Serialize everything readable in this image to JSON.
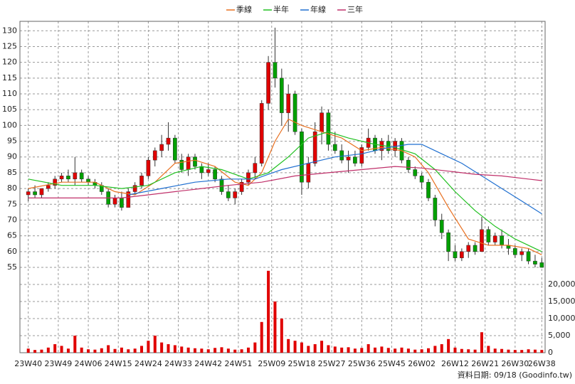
{
  "chart_data": {
    "type": "candlestick",
    "xlim": [
      -2.5,
      155
    ],
    "xticks": [
      {
        "value": 0,
        "label": "23W40"
      },
      {
        "value": 9,
        "label": "23W49"
      },
      {
        "value": 18,
        "label": "24W06"
      },
      {
        "value": 27,
        "label": "24W15"
      },
      {
        "value": 36,
        "label": "24W24"
      },
      {
        "value": 45,
        "label": "24W33"
      },
      {
        "value": 54,
        "label": "24W42"
      },
      {
        "value": 63,
        "label": "24W51"
      },
      {
        "value": 73,
        "label": "25W09"
      },
      {
        "value": 82,
        "label": "25W18"
      },
      {
        "value": 91,
        "label": "25W27"
      },
      {
        "value": 100,
        "label": "25W36"
      },
      {
        "value": 109,
        "label": "25W45"
      },
      {
        "value": 118,
        "label": "26W02"
      },
      {
        "value": 128,
        "label": "26W12"
      },
      {
        "value": 137,
        "label": "26W21"
      },
      {
        "value": 146,
        "label": "26W30"
      },
      {
        "value": 154,
        "label": "26W38"
      }
    ],
    "ylim": [
      55,
      133
    ],
    "yticks": [
      55,
      60,
      65,
      70,
      75,
      80,
      85,
      90,
      95,
      100,
      105,
      110,
      115,
      120,
      125,
      130
    ],
    "grid": true,
    "up_color": "#e00000",
    "down_color": "#00a000",
    "candles": {
      "x": [
        0,
        2,
        4,
        6,
        8,
        10,
        12,
        14,
        16,
        18,
        20,
        22,
        24,
        26,
        28,
        30,
        32,
        34,
        36,
        38,
        40,
        42,
        44,
        46,
        48,
        50,
        52,
        54,
        56,
        58,
        60,
        62,
        64,
        66,
        68,
        70,
        72,
        74,
        76,
        78,
        80,
        82,
        84,
        86,
        88,
        90,
        92,
        94,
        96,
        98,
        100,
        102,
        104,
        106,
        108,
        110,
        112,
        114,
        116,
        118,
        120,
        122,
        124,
        126,
        128,
        130,
        132,
        134,
        136,
        138,
        140,
        142,
        144,
        146,
        148,
        150,
        152,
        154
      ],
      "open": [
        78,
        79,
        78,
        80,
        81,
        83,
        84,
        83,
        85,
        83,
        82,
        81,
        79,
        75,
        77,
        74,
        79,
        81,
        84,
        89,
        92,
        94,
        96,
        89,
        86,
        90,
        87,
        85,
        86,
        83,
        79,
        77,
        79,
        82,
        85,
        88,
        107,
        120,
        115,
        104,
        110,
        98,
        82,
        88,
        98,
        104,
        94,
        92,
        89,
        90,
        88,
        93,
        96,
        92,
        95,
        92,
        95,
        89,
        86,
        84,
        82,
        77,
        70,
        66,
        60,
        58,
        60,
        62,
        60,
        67,
        63,
        65,
        62,
        61,
        59,
        60,
        57,
        56.5
      ],
      "high": [
        80,
        81,
        80,
        82,
        84,
        85,
        86,
        90,
        86,
        84,
        83,
        82,
        80,
        78,
        79,
        80,
        82,
        85,
        90,
        93,
        97,
        101,
        97,
        91,
        91,
        91,
        88,
        88,
        87,
        84,
        81,
        80,
        83,
        86,
        90,
        108,
        122,
        131,
        118,
        113,
        111,
        99,
        90,
        101,
        106,
        105,
        98,
        94,
        92,
        92,
        94,
        99,
        97,
        96,
        97,
        96,
        96,
        90,
        87,
        85,
        83,
        78,
        72,
        67,
        62,
        61,
        63,
        63,
        71,
        68,
        66,
        67,
        64,
        62,
        61,
        61,
        59,
        58
      ],
      "low": [
        76,
        77,
        77,
        79,
        80,
        82,
        82,
        81,
        82,
        81,
        80,
        78,
        74,
        74,
        73,
        74,
        78,
        80,
        83,
        87,
        90,
        92,
        88,
        85,
        84,
        86,
        83,
        84,
        82,
        78,
        76,
        75,
        78,
        81,
        83,
        87,
        105,
        112,
        100,
        98,
        97,
        78,
        80,
        87,
        94,
        92,
        91,
        88,
        85,
        87,
        87,
        92,
        91,
        89,
        91,
        90,
        88,
        85,
        83,
        80,
        76,
        68,
        64,
        57,
        57,
        57,
        58,
        59,
        60,
        62,
        62,
        61,
        59,
        58,
        57,
        56,
        55,
        55
      ],
      "close": [
        79,
        78,
        80,
        81,
        83,
        84,
        83,
        85,
        83,
        82,
        81,
        79,
        75,
        77,
        74,
        79,
        81,
        84,
        89,
        92,
        94,
        96,
        89,
        86,
        90,
        87,
        85,
        86,
        83,
        79,
        77,
        79,
        82,
        85,
        88,
        107,
        120,
        115,
        104,
        110,
        98,
        82,
        88,
        98,
        104,
        94,
        92,
        89,
        90,
        88,
        93,
        96,
        92,
        95,
        92,
        95,
        89,
        86,
        84,
        82,
        77,
        70,
        66,
        60,
        58,
        60,
        62,
        60,
        67,
        63,
        65,
        62,
        61,
        59,
        60,
        57,
        56,
        55
      ]
    },
    "volume": {
      "color": "#e00000",
      "ylim": [
        0,
        25000
      ],
      "yticks": [
        0,
        {
          "value": 5000,
          "label": "5,000"
        },
        {
          "value": 10000,
          "label": "10,000"
        },
        {
          "value": 15000,
          "label": "15,000"
        },
        {
          "value": 20000,
          "label": "20,000"
        }
      ],
      "values": [
        1200,
        800,
        900,
        1500,
        2500,
        2000,
        1200,
        5000,
        1500,
        1000,
        900,
        1300,
        2200,
        1100,
        1500,
        1000,
        1200,
        2000,
        3500,
        5000,
        3000,
        2500,
        2200,
        1800,
        1500,
        1300,
        1200,
        1000,
        1400,
        1600,
        1200,
        900,
        1000,
        1500,
        3000,
        9000,
        24000,
        15000,
        10000,
        4000,
        3500,
        3000,
        2000,
        2500,
        3500,
        2200,
        1800,
        1500,
        1600,
        1200,
        1400,
        2500,
        1500,
        1800,
        1400,
        1200,
        1500,
        1200,
        900,
        1000,
        1300,
        2000,
        2500,
        4000,
        1500,
        1100,
        1000,
        900,
        6000,
        2000,
        1200,
        1100,
        900,
        800,
        800,
        1000,
        900,
        800
      ]
    },
    "series": [
      {
        "name": "季線",
        "color": "#e87020",
        "x": [
          0,
          10,
          20,
          26,
          32,
          38,
          44,
          50,
          56,
          62,
          66,
          70,
          74,
          78,
          82,
          88,
          94,
          100,
          106,
          112,
          116,
          120,
          126,
          132,
          138,
          144,
          150,
          154
        ],
        "values": [
          80,
          82,
          82,
          79,
          78,
          82,
          88,
          89,
          87,
          82,
          81,
          85,
          95,
          102,
          100,
          98,
          96,
          92,
          93,
          92,
          90,
          85,
          74,
          64,
          62,
          62,
          61,
          59
        ]
      },
      {
        "name": "半年",
        "color": "#20c020",
        "x": [
          0,
          10,
          20,
          28,
          36,
          44,
          52,
          58,
          66,
          72,
          78,
          84,
          90,
          96,
          104,
          110,
          116,
          122,
          128,
          134,
          140,
          146,
          152,
          154
        ],
        "values": [
          83,
          81,
          81,
          80,
          81,
          85,
          87,
          86,
          83,
          85,
          90,
          96,
          98,
          96,
          94,
          93,
          91,
          86,
          79,
          73,
          68,
          64,
          61,
          60
        ]
      },
      {
        "name": "年線",
        "color": "#1f6fd0",
        "x": [
          30,
          40,
          50,
          60,
          68,
          76,
          84,
          92,
          100,
          108,
          114,
          118,
          124,
          130,
          136,
          142,
          148,
          154
        ],
        "values": [
          78,
          80,
          82,
          83,
          83,
          86,
          88,
          90,
          91,
          93,
          94,
          94,
          91,
          88,
          84,
          80,
          76,
          72
        ]
      },
      {
        "name": "三年",
        "color": "#c0306a",
        "x": [
          0,
          10,
          20,
          28,
          36,
          44,
          52,
          60,
          70,
          80,
          90,
          100,
          110,
          118,
          126,
          134,
          142,
          150,
          154
        ],
        "values": [
          77,
          77,
          77,
          77,
          78,
          79,
          80,
          81,
          82,
          84,
          85,
          86,
          87,
          86.5,
          85.5,
          84.5,
          84,
          83,
          82.5
        ]
      }
    ],
    "footer": "資料日期: 09/18 (Goodinfo.tw)"
  }
}
